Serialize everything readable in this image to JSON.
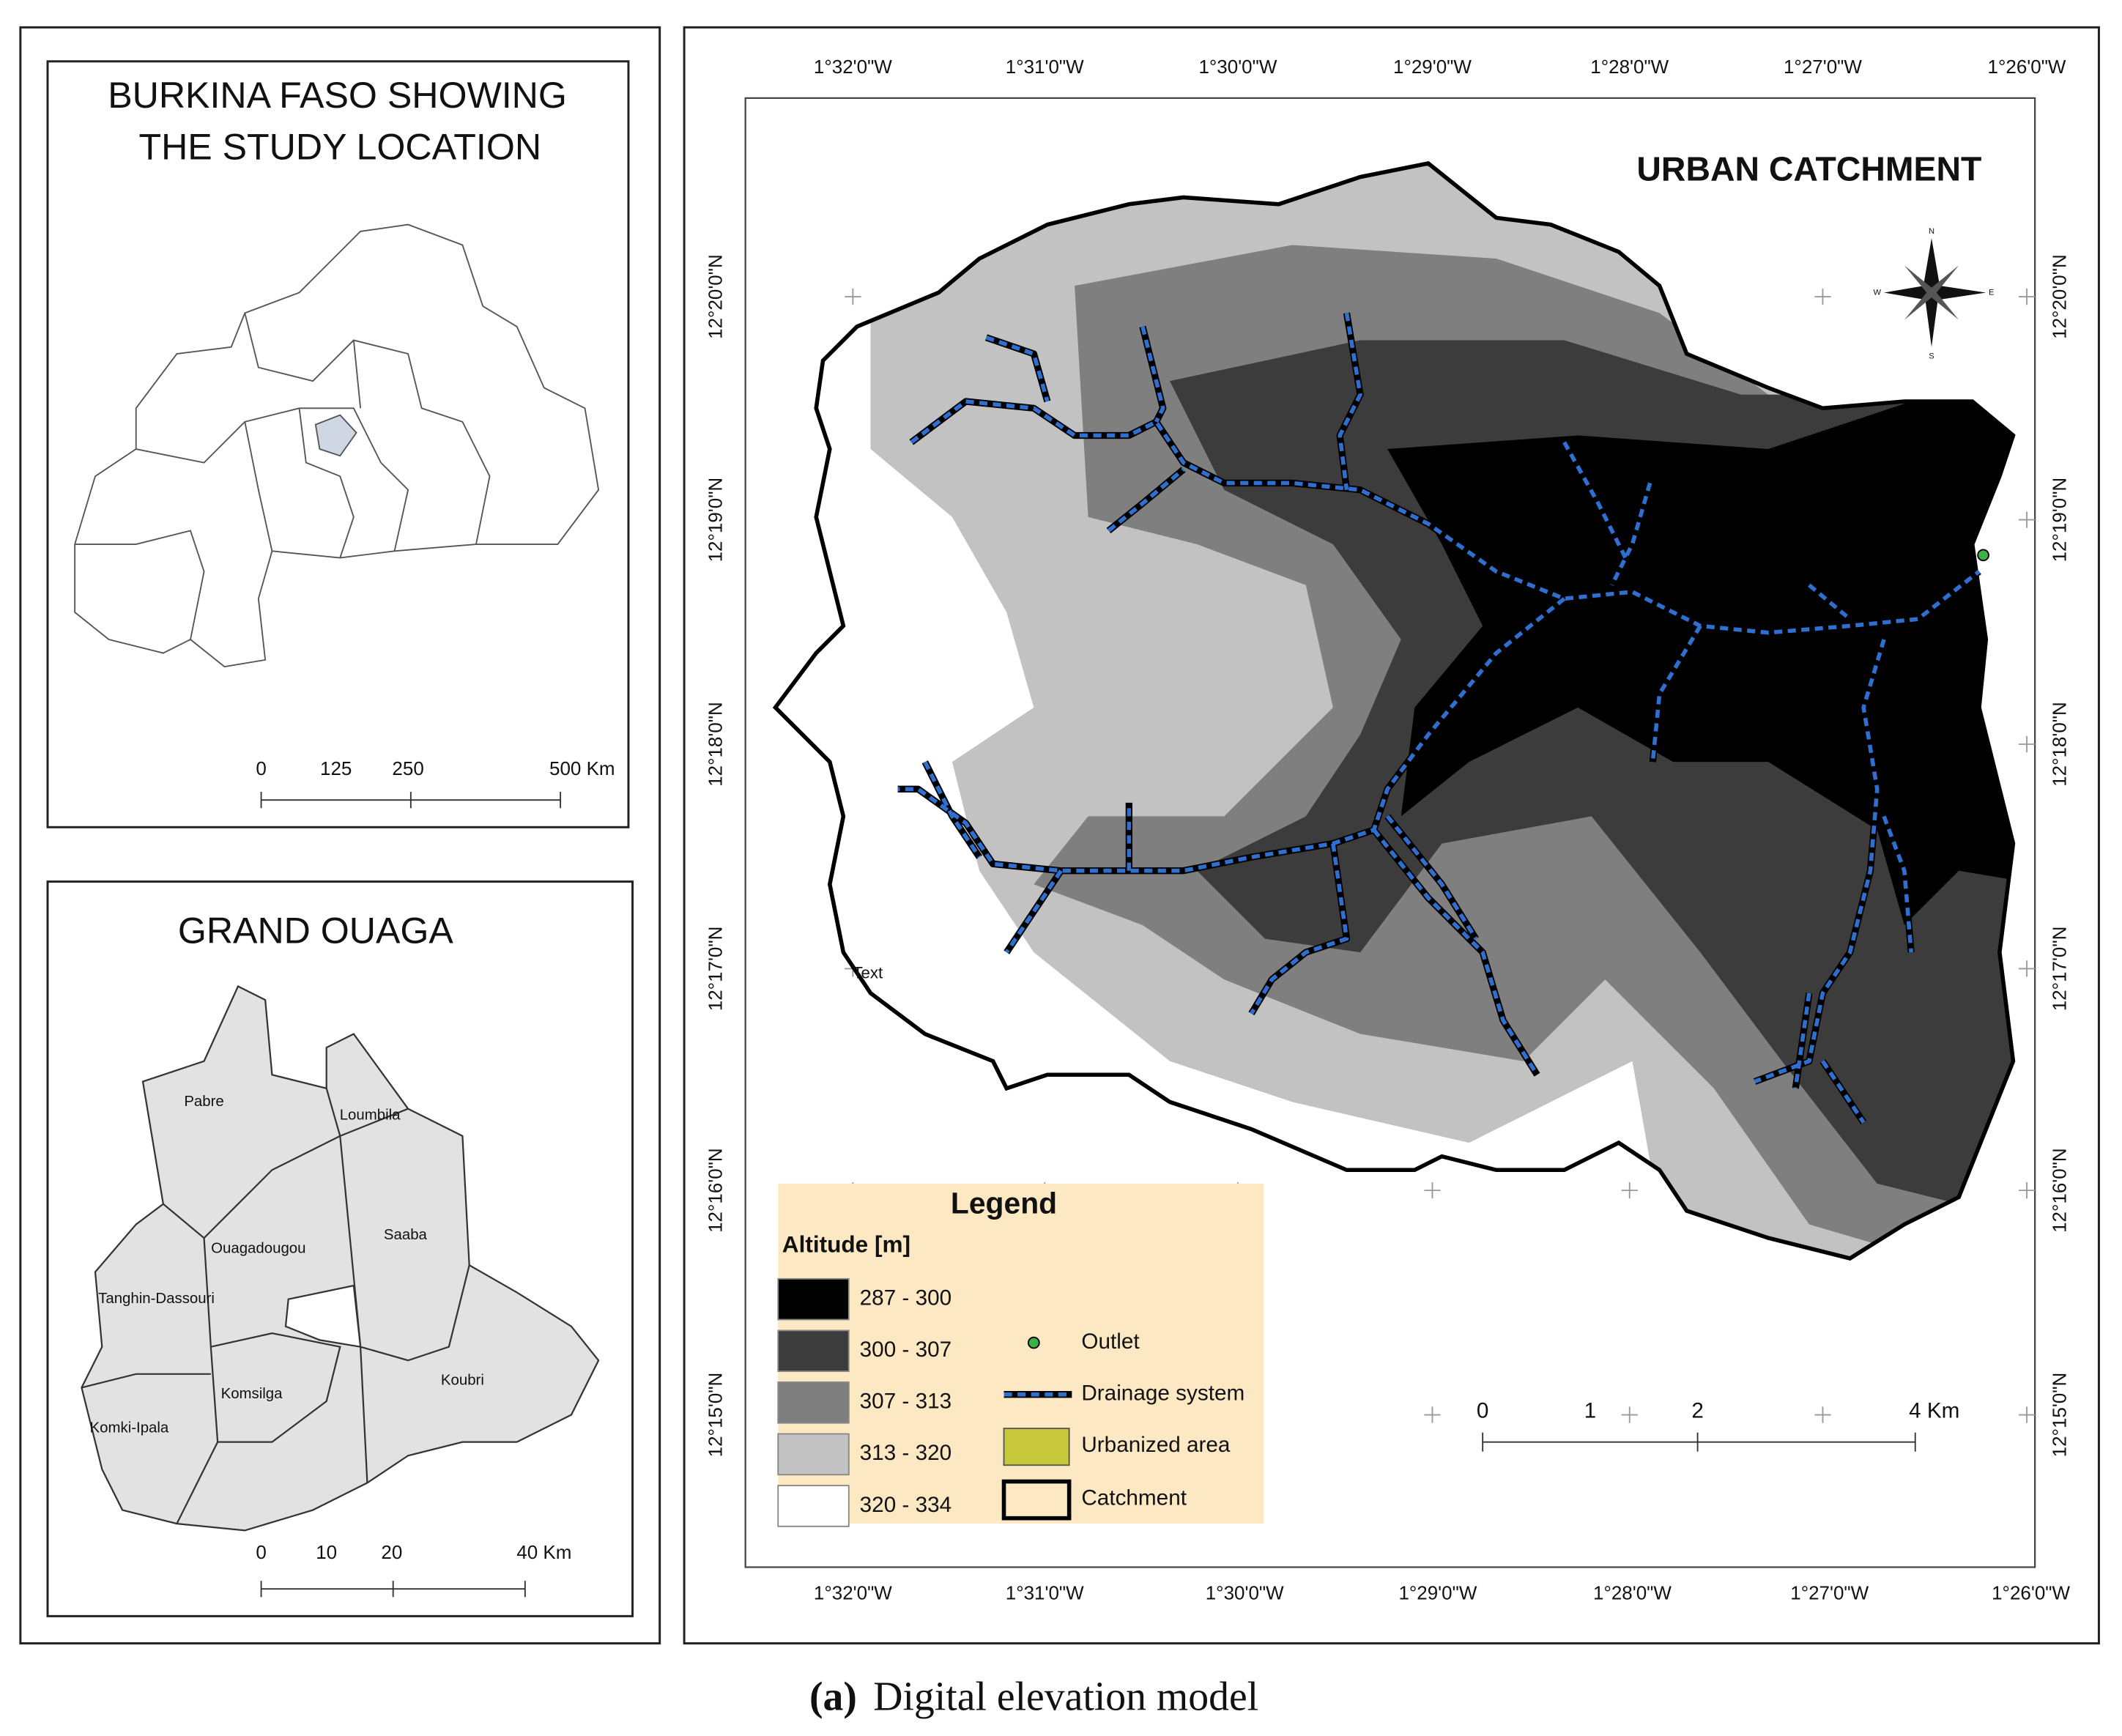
{
  "inset_country": {
    "title_lines": [
      "BURKINA FASO SHOWING",
      "THE STUDY LOCATION"
    ],
    "scale_labels": [
      "0",
      "125",
      "250",
      "500 Km"
    ]
  },
  "inset_region": {
    "title": "GRAND OUAGA",
    "places": [
      "Pabre",
      "Loumbila",
      "Ouagadougou",
      "Saaba",
      "Tanghin-Dassouri",
      "Komsilga",
      "Koubri",
      "Komki-Ipala"
    ],
    "scale_labels": [
      "0",
      "10",
      "20",
      "40 Km"
    ]
  },
  "main_map": {
    "title": "URBAN CATCHMENT",
    "longitude_labels": [
      "1°32'0\"W",
      "1°31'0\"W",
      "1°30'0\"W",
      "1°29'0\"W",
      "1°28'0\"W",
      "1°27'0\"W",
      "1°26'0\"W"
    ],
    "latitude_labels": [
      "12°20'0\"N",
      "12°19'0\"N",
      "12°18'0\"N",
      "12°17'0\"N",
      "12°16'0\"N",
      "12°15'0\"N"
    ],
    "compass": [
      "N",
      "E",
      "S",
      "W"
    ],
    "stray_text": "Text",
    "scale_labels": [
      "0",
      "1",
      "2",
      "4 Km"
    ],
    "legend": {
      "title": "Legend",
      "subtitle": "Altitude [m]",
      "classes": [
        {
          "label": "287 - 300",
          "color": "#000000"
        },
        {
          "label": "300 - 307",
          "color": "#3c3c3c"
        },
        {
          "label": "307 - 313",
          "color": "#7f7f7f"
        },
        {
          "label": "313 - 320",
          "color": "#c2c2c2"
        },
        {
          "label": "320 - 334",
          "color": "#ffffff"
        }
      ],
      "symbols": [
        "Outlet",
        "Drainage system",
        "Urbanized area",
        "Catchment"
      ]
    }
  },
  "caption": {
    "label": "(a)",
    "text": "Digital elevation model"
  }
}
